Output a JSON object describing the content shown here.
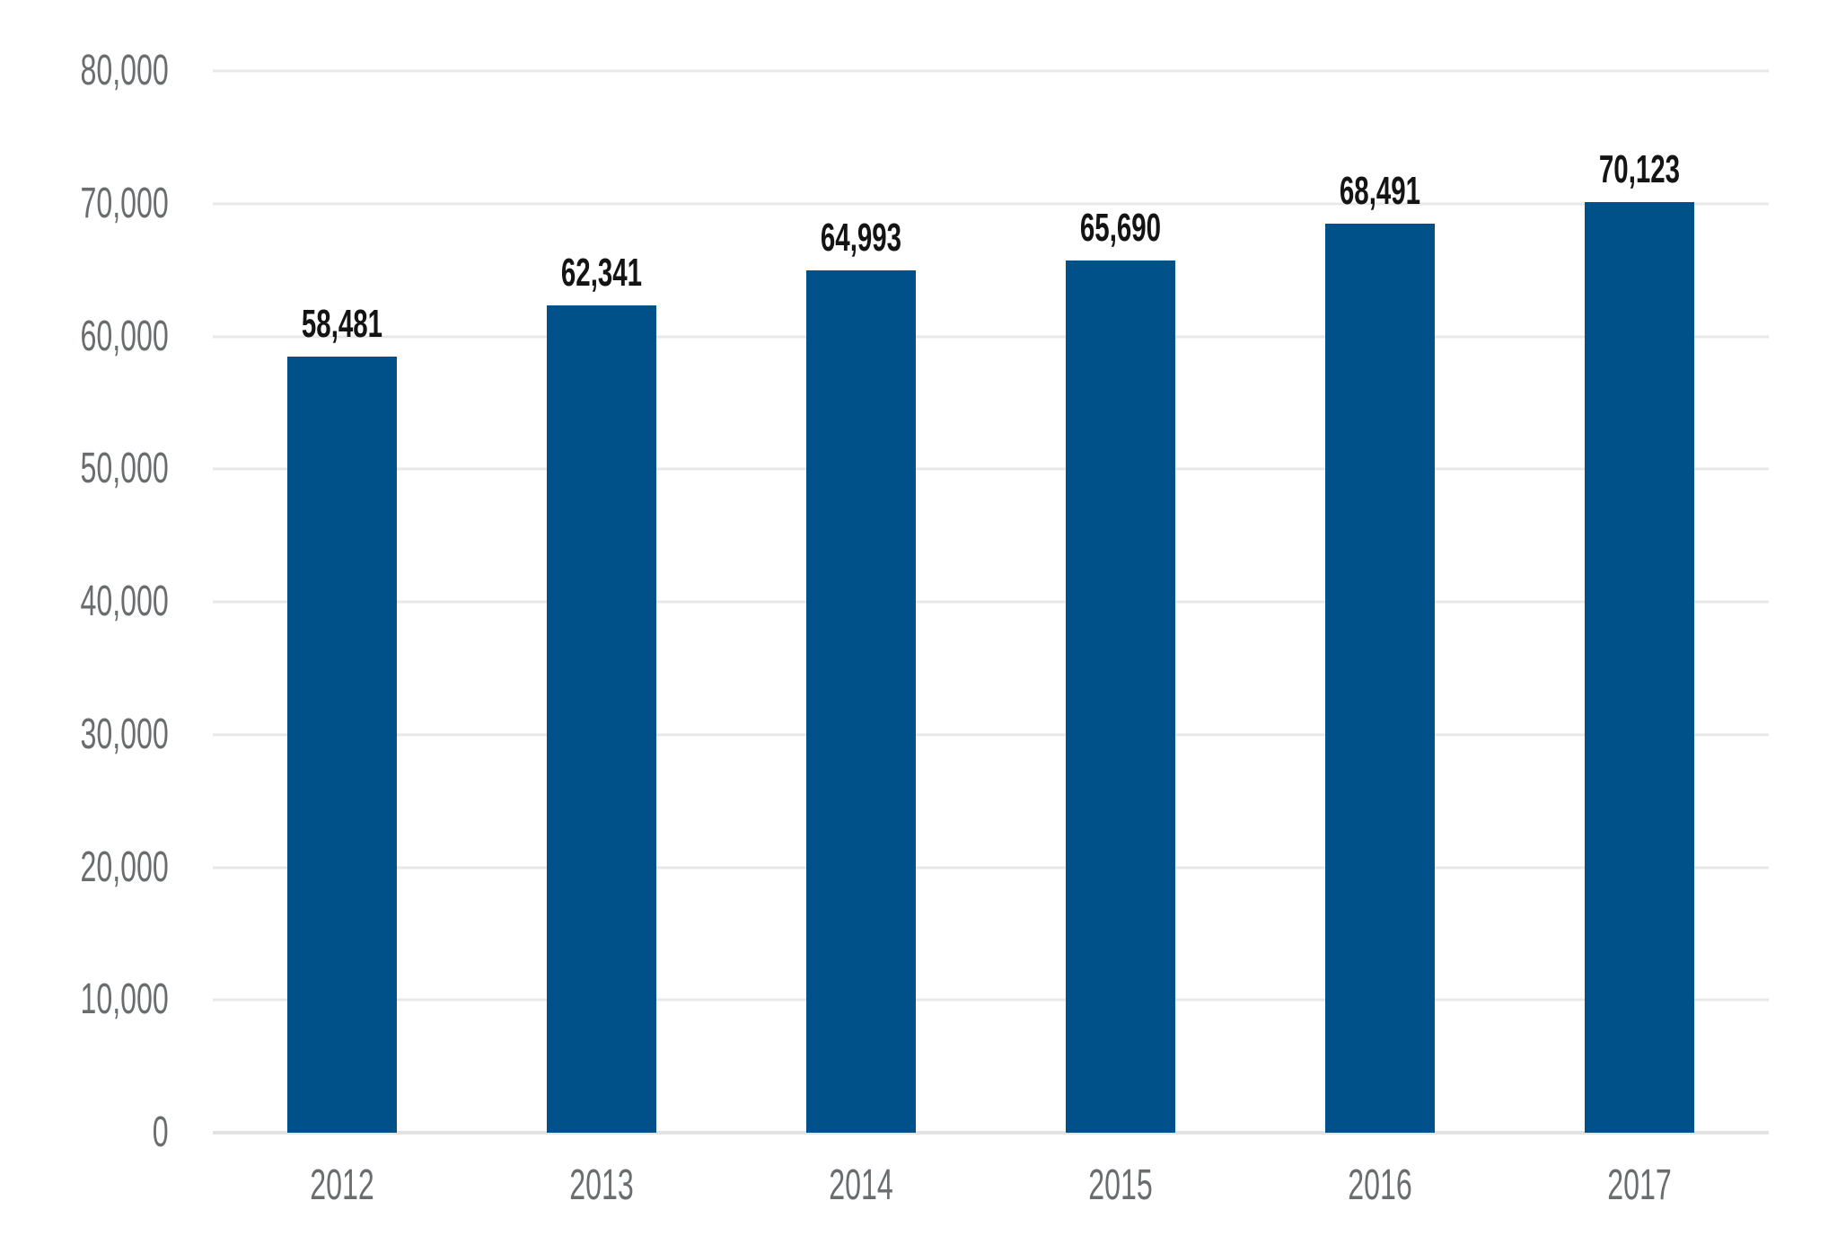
{
  "chart_data": {
    "type": "bar",
    "title": "",
    "xlabel": "",
    "ylabel": "",
    "categories": [
      "2012",
      "2013",
      "2014",
      "2015",
      "2016",
      "2017"
    ],
    "values": [
      58481,
      62341,
      64993,
      65690,
      68491,
      70123
    ],
    "value_labels": [
      "58,481",
      "62,341",
      "64,993",
      "65,690",
      "68,491",
      "70,123"
    ],
    "ylim": [
      0,
      80000
    ],
    "ytick_interval": 10000,
    "yticks": [
      {
        "value": 0,
        "label": "0"
      },
      {
        "value": 10000,
        "label": "10,000"
      },
      {
        "value": 20000,
        "label": "20,000"
      },
      {
        "value": 30000,
        "label": "30,000"
      },
      {
        "value": 40000,
        "label": "40,000"
      },
      {
        "value": 50000,
        "label": "50,000"
      },
      {
        "value": 60000,
        "label": "60,000"
      },
      {
        "value": 70000,
        "label": "70,000"
      },
      {
        "value": 80000,
        "label": "80,000"
      }
    ],
    "grid": true,
    "legend": "none",
    "bar_color": "#00518a",
    "value_label_color": "#141414",
    "tick_label_color": "#6a6d70",
    "gridline_color": "#e8e8e8",
    "axis_line_color": "#e2e2e2",
    "background_color": "#ffffff"
  }
}
